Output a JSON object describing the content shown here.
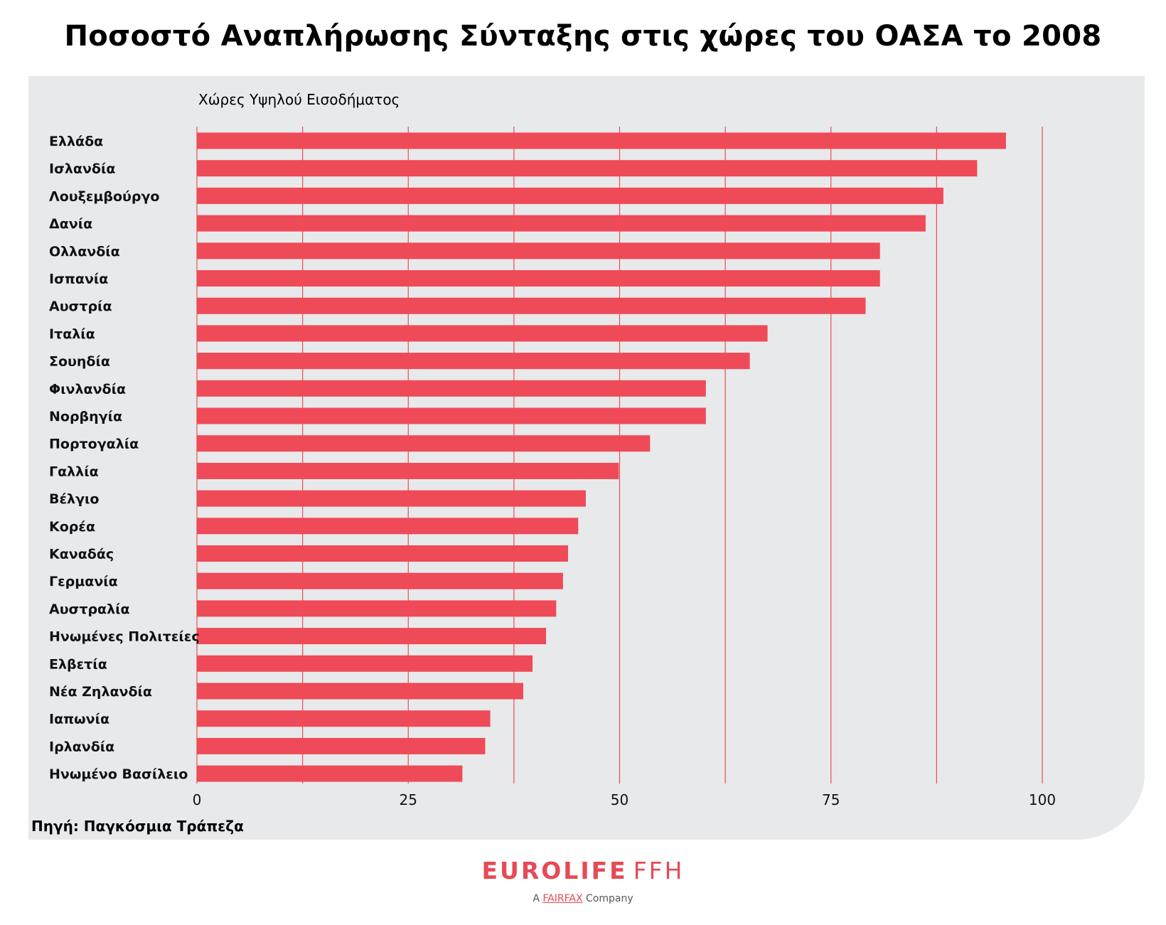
{
  "title": "Ποσοστό Αναπλήρωσης Σύνταξης στις χώρες του ΟΑΣΑ το 2008",
  "subtitle": "Χώρες Υψηλού Εισοδήματος",
  "source": "Πηγή: Παγκόσμια Τράπεζα",
  "logo": {
    "brand": "EUROLIFE",
    "suffix": "FFH",
    "tag_pre": "A",
    "tag_fairfax": "FAIRFAX",
    "tag_post": "Company"
  },
  "colors": {
    "bar": "#ee4a58",
    "grid": "#ee4a58",
    "panel": "#e8e9eb"
  },
  "chart_data": {
    "type": "bar",
    "orientation": "horizontal",
    "title": "Ποσοστό Αναπλήρωσης Σύνταξης στις χώρες του ΟΑΣΑ το 2008",
    "xlim": [
      0,
      100
    ],
    "xticks": [
      0,
      25,
      50,
      75,
      100
    ],
    "grid": true,
    "categories": [
      "Ελλάδα",
      "Ισλανδία",
      "Λουξεμβούργο",
      "Δανία",
      "Ολλανδία",
      "Ισπανία",
      "Αυστρία",
      "Ιταλία",
      "Σουηδία",
      "Φινλανδία",
      "Νορβηγία",
      "Πορτογαλία",
      "Γαλλία",
      "Βέλγιο",
      "Κορέα",
      "Καναδάς",
      "Γερμανία",
      "Αυστραλία",
      "Ηνωμένες Πολιτείες",
      "Ελβετία",
      "Νέα Ζηλανδία",
      "Ιαπωνία",
      "Ιρλανδία",
      "Ηνωμένο Βασίλειο"
    ],
    "values": [
      95.7,
      92.3,
      88.3,
      86.2,
      80.8,
      80.8,
      79.1,
      67.5,
      65.4,
      60.2,
      60.2,
      53.6,
      49.9,
      46.0,
      45.1,
      43.9,
      43.3,
      42.5,
      41.3,
      39.7,
      38.6,
      34.7,
      34.1,
      31.4
    ]
  }
}
